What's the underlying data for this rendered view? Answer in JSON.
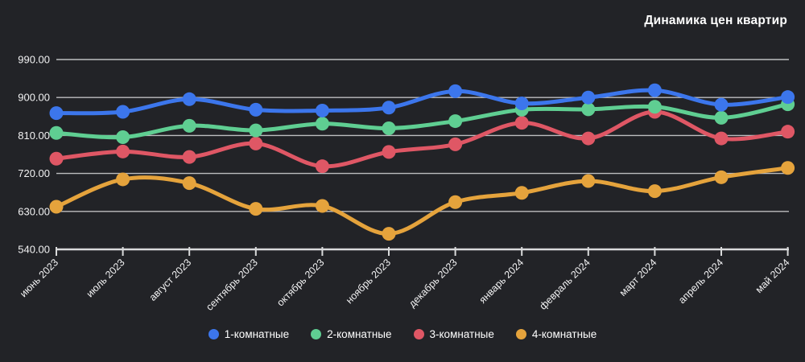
{
  "title": "Динамика цен квартир",
  "chart_data": {
    "type": "line",
    "categories": [
      "июнь 2023",
      "июль 2023",
      "август 2023",
      "сентябрь 2023",
      "октябрь 2023",
      "ноябрь 2023",
      "декабрь 2023",
      "январь 2024",
      "февраль 2024",
      "март 2024",
      "апрель 2024",
      "май 2024"
    ],
    "series": [
      {
        "name": "1-комнатные",
        "color": "#3c76ec",
        "values": [
          863,
          866,
          896,
          871,
          869,
          876,
          915,
          886,
          900,
          917,
          883,
          901
        ]
      },
      {
        "name": "2-комнатные",
        "color": "#5fce92",
        "values": [
          816,
          806,
          833,
          822,
          838,
          827,
          844,
          871,
          872,
          878,
          852,
          884
        ]
      },
      {
        "name": "3-комнатные",
        "color": "#df5765",
        "values": [
          755,
          772,
          759,
          791,
          737,
          771,
          789,
          840,
          803,
          866,
          803,
          819
        ]
      },
      {
        "name": "4-комнатные",
        "color": "#e5a33c",
        "values": [
          641,
          706,
          697,
          636,
          643,
          577,
          652,
          674,
          702,
          678,
          711,
          733
        ]
      }
    ],
    "ylim": [
      540,
      990
    ],
    "yticks": [
      540,
      630,
      720,
      810,
      900,
      990
    ],
    "ytick_labels": [
      "540.00",
      "630.00",
      "720.00",
      "810.00",
      "900.00",
      "990.00"
    ],
    "grid": true,
    "legend_position": "bottom",
    "colors": {
      "background": "#222327",
      "grid_line": "#c6c7c9",
      "axis_line": "#d9dadb",
      "tick_text": "#f2f2f3",
      "title_text": "#ffffff"
    }
  }
}
